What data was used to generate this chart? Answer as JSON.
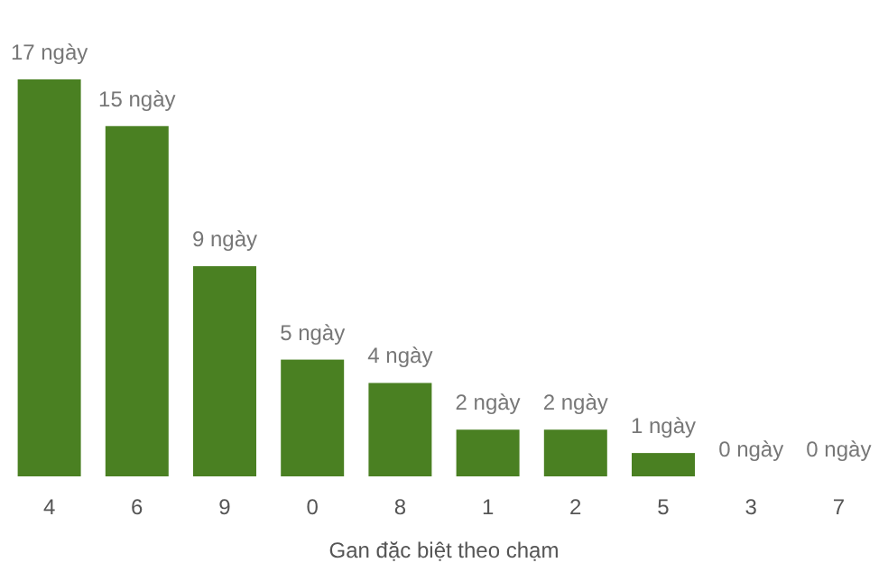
{
  "chart_data": {
    "type": "bar",
    "xlabel": "Gan đặc biệt theo chạm",
    "categories": [
      "4",
      "6",
      "9",
      "0",
      "8",
      "1",
      "2",
      "5",
      "3",
      "7"
    ],
    "values": [
      17,
      15,
      9,
      5,
      4,
      2,
      2,
      1,
      0,
      0
    ],
    "value_labels": [
      "17 ngày",
      "15 ngày",
      "9 ngày",
      "5 ngày",
      "4 ngày",
      "2 ngày",
      "2 ngày",
      "1 ngày",
      "0 ngày",
      "0 ngày"
    ],
    "color": "#4a8022"
  }
}
